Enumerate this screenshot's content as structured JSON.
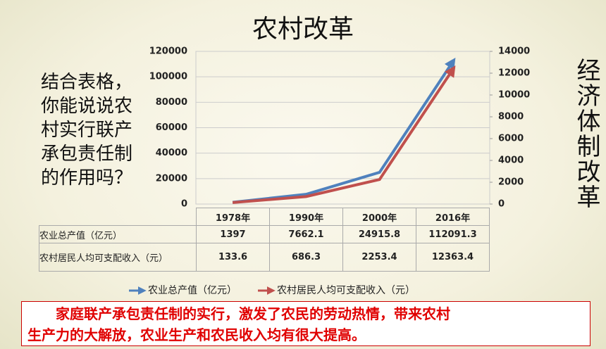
{
  "title": "农村改革",
  "question": [
    "结合表格，",
    "你能说说农",
    "村实行联产",
    "承包责任制",
    "的作用吗？"
  ],
  "side_text": "经济体制改革",
  "chart_data": {
    "type": "line",
    "categories": [
      "1978年",
      "1990年",
      "2000年",
      "2016年"
    ],
    "series": [
      {
        "name": "农业总产值（亿元）",
        "color": "#4f81bd",
        "values": [
          1397,
          7662.1,
          24915.8,
          112091.3
        ]
      },
      {
        "name": "农村居民人均可支配收入（元）",
        "color": "#c0504d",
        "axis": "y2",
        "values": [
          133.6,
          686.3,
          2253.4,
          12363.4
        ]
      }
    ],
    "ylim": [
      0,
      120000
    ],
    "yticks": [
      0,
      20000,
      40000,
      60000,
      80000,
      100000,
      120000
    ],
    "y2lim": [
      0,
      14000
    ],
    "y2ticks": [
      0,
      2000,
      4000,
      6000,
      8000,
      10000,
      12000,
      14000
    ],
    "grid": true,
    "data_table": true,
    "legend": "bottom"
  },
  "conclusion": [
    "家庭联产承包责任制的实行，激发了农民的劳动热情，带来农村",
    "生产力的大解放，农业生产和农民收入均有很大提高。"
  ]
}
